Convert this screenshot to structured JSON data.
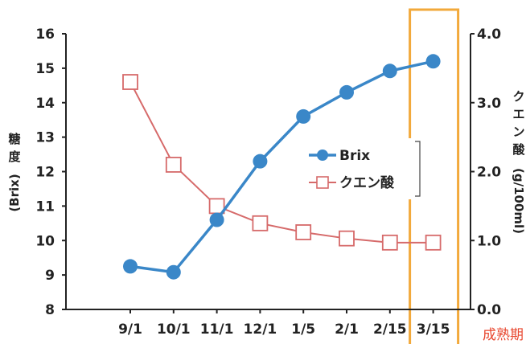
{
  "chart_data": {
    "type": "line",
    "categories": [
      "9/1",
      "10/1",
      "11/1",
      "12/1",
      "1/5",
      "2/1",
      "2/15",
      "3/15"
    ],
    "series": [
      {
        "name": "Brix",
        "axis": "left",
        "values": [
          9.25,
          9.08,
          10.6,
          12.3,
          13.6,
          14.3,
          14.92,
          15.2
        ],
        "color": "#3a87c8",
        "marker": "filled-circle"
      },
      {
        "name": "クエン酸",
        "axis": "right",
        "values": [
          3.3,
          2.1,
          1.5,
          1.25,
          1.12,
          1.03,
          0.97,
          0.97
        ],
        "color": "#d66a6a",
        "marker": "hollow-square"
      }
    ],
    "y_left": {
      "label_chars": [
        "糖",
        "度"
      ],
      "label_unit": "(Brix)",
      "range": [
        8,
        16
      ],
      "ticks": [
        "8",
        "9",
        "10",
        "11",
        "12",
        "13",
        "14",
        "15",
        "16"
      ]
    },
    "y_right": {
      "label_chars": [
        "ク",
        "エ",
        "ン",
        "酸"
      ],
      "label_unit": "(g/100ml)",
      "range": [
        0,
        4
      ],
      "ticks": [
        "0.0",
        "1.0",
        "2.0",
        "3.0",
        "4.0"
      ]
    },
    "legend": {
      "placement": "middle-right",
      "entries": [
        "Brix",
        "クエン酸"
      ]
    },
    "highlight": {
      "category": "3/15",
      "color": "#f2a93b"
    },
    "note": {
      "text": "成熟期",
      "color": "#e8462e"
    },
    "grid": false
  }
}
